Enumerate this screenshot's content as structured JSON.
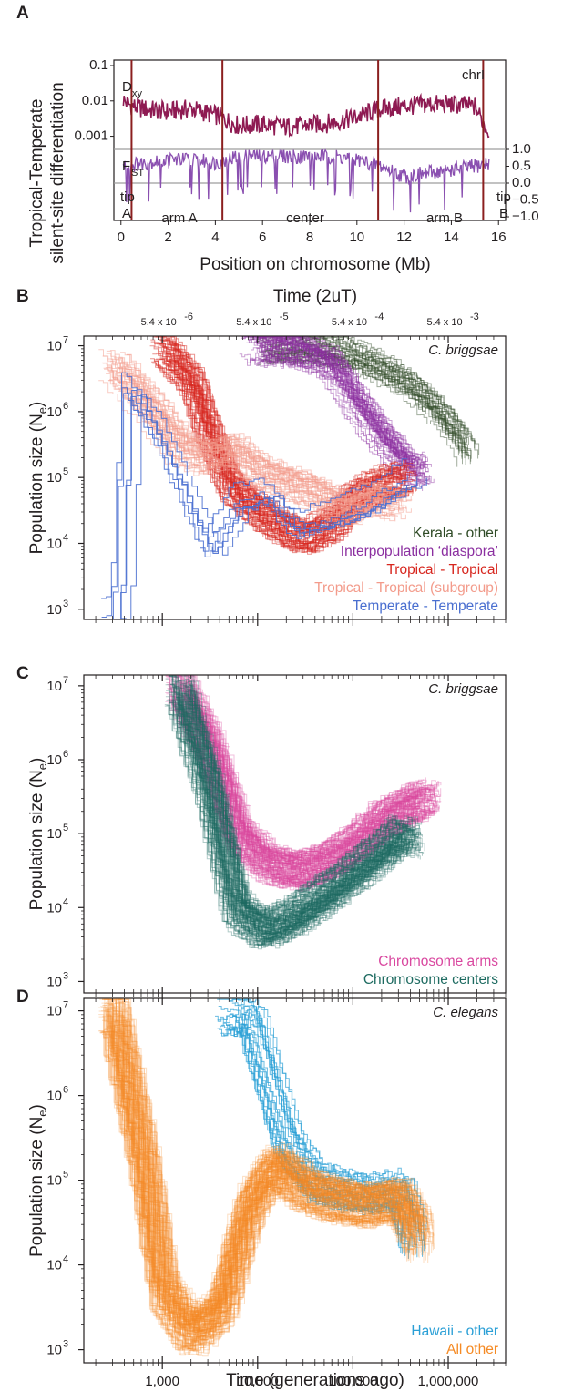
{
  "chart_data": [
    {
      "panel": "A",
      "type": "line",
      "ylabel": "Tropical-Temperate\nsilent-site differentiation",
      "xlabel": "Position on chromosome (Mb)",
      "xlim": [
        -0.3,
        16.3
      ],
      "x_ticks": [
        "0",
        "2",
        "4",
        "6",
        "8",
        "10",
        "12",
        "14",
        "16"
      ],
      "left_y_ticks": [
        "0.1",
        "0.01",
        "0.001"
      ],
      "right_y_ticks": [
        "1.0",
        "0.5",
        "0.0",
        "−0.5",
        "−1.0"
      ],
      "series": [
        {
          "name": "D",
          "subscript": "xy",
          "color": "#8e1a52",
          "scale": "log",
          "ylim": [
            0.0004,
            0.1
          ],
          "x": [
            0.1,
            1.0,
            2.0,
            3.0,
            4.0,
            5.0,
            6.0,
            7.0,
            8.0,
            9.0,
            10.0,
            11.0,
            12.0,
            13.0,
            14.0,
            15.0,
            15.6
          ],
          "values": [
            0.011,
            0.006,
            0.005,
            0.006,
            0.004,
            0.002,
            0.0022,
            0.0018,
            0.0021,
            0.0024,
            0.0035,
            0.006,
            0.007,
            0.008,
            0.008,
            0.007,
            0.0012
          ]
        },
        {
          "name": "F",
          "subscript": "ST",
          "color": "#8a4fb0",
          "scale": "linear",
          "ylim": [
            -1.2,
            1.2
          ],
          "x": [
            0.1,
            1.0,
            2.0,
            3.0,
            4.0,
            5.0,
            6.0,
            7.0,
            8.0,
            9.0,
            10.0,
            11.0,
            12.0,
            13.0,
            14.0,
            15.0,
            15.6
          ],
          "values": [
            0.5,
            0.6,
            0.7,
            0.7,
            0.6,
            0.8,
            0.8,
            0.8,
            0.8,
            0.8,
            0.7,
            0.5,
            0.2,
            0.3,
            0.4,
            0.5,
            0.6
          ]
        }
      ],
      "boundaries_mb": [
        0.45,
        4.3,
        10.9,
        15.35
      ],
      "boundary_color": "#8b1f1f",
      "gray_line_color": "#9d9d9d",
      "regions": [
        {
          "label": "tip",
          "label2": "A"
        },
        {
          "label": "arm A"
        },
        {
          "label": "center"
        },
        {
          "label": "arm B"
        },
        {
          "label": "tip",
          "label2": "B"
        }
      ],
      "chromosome_label": "chrI",
      "letter": "A"
    },
    {
      "panel": "B",
      "type": "line",
      "species": "C. briggsae",
      "ylabel": "Population size (N",
      "ylabel_sub": "e",
      "top_axis_label": "Time (2uT)",
      "top_ticks": [
        "5.4 x 10",
        "5.4 x 10",
        "5.4 x 10",
        "5.4 x 10"
      ],
      "top_tick_exp": [
        "-6",
        "-5",
        "-4",
        "-3"
      ],
      "xscale": "log",
      "yscale": "log",
      "xlim": [
        150,
        4000000
      ],
      "ylim": [
        700,
        14000000
      ],
      "y_ticks": [
        "10",
        "10",
        "10",
        "10",
        "10"
      ],
      "y_tick_exp": [
        "3",
        "4",
        "5",
        "6",
        "7"
      ],
      "series": [
        {
          "name": "Kerala - other",
          "color": "#2e4a25",
          "x": [
            12000,
            30000,
            60000,
            100000,
            200000,
            400000,
            800000,
            1300000,
            1500000
          ],
          "values": [
            9000000,
            9000000,
            8000000,
            7000000,
            4500000,
            2500000,
            1000000,
            400000,
            250000
          ]
        },
        {
          "name": "Interpopulation ‘diaspora’",
          "color": "#8b2fa0",
          "x": [
            9000,
            15000,
            30000,
            60000,
            100000,
            200000,
            350000,
            500000
          ],
          "values": [
            9000000,
            9000000,
            8000000,
            5000000,
            1500000,
            400000,
            150000,
            120000
          ]
        },
        {
          "name": "Tropical - Tropical",
          "color": "#d7261e",
          "x": [
            1000,
            2000,
            3000,
            5000,
            8000,
            15000,
            30000,
            60000,
            100000,
            200000,
            350000
          ],
          "values": [
            9000000,
            3000000,
            500000,
            80000,
            40000,
            20000,
            12000,
            20000,
            50000,
            80000,
            100000
          ]
        },
        {
          "name": "Tropical - Tropical (subgroup)",
          "color": "#f39b8b",
          "x": [
            300,
            800,
            1500,
            3000,
            5000,
            8000,
            15000,
            40000,
            80000,
            150000,
            300000
          ],
          "values": [
            5000000,
            1000000,
            300000,
            200000,
            300000,
            150000,
            100000,
            60000,
            30000,
            50000,
            40000
          ]
        },
        {
          "name": "Temperate - Temperate",
          "color": "#4a6fd0",
          "x": [
            260,
            320,
            420,
            700,
            1500,
            3000,
            6000,
            12000,
            25000,
            60000,
            150000,
            300000,
            420000
          ],
          "values": [
            1000,
            1000,
            3000000,
            1000000,
            100000,
            10000,
            50000,
            70000,
            20000,
            30000,
            50000,
            100000,
            130000
          ]
        }
      ],
      "letter": "B"
    },
    {
      "panel": "C",
      "type": "line",
      "species": "C. briggsae",
      "ylabel": "Population size (N",
      "ylabel_sub": "e",
      "xscale": "log",
      "yscale": "log",
      "xlim": [
        150,
        4000000
      ],
      "ylim": [
        700,
        14000000
      ],
      "y_ticks": [
        "10",
        "10",
        "10",
        "10",
        "10"
      ],
      "y_tick_exp": [
        "3",
        "4",
        "5",
        "6",
        "7"
      ],
      "series": [
        {
          "name": "Chromosome arms",
          "color": "#d9479f",
          "x": [
            1500,
            3000,
            6000,
            12000,
            25000,
            50000,
            100000,
            200000,
            400000,
            600000
          ],
          "values": [
            9000000,
            1500000,
            100000,
            40000,
            30000,
            40000,
            70000,
            150000,
            250000,
            300000
          ]
        },
        {
          "name": "Chromosome centers",
          "color": "#1e6b61",
          "x": [
            1500,
            3000,
            6000,
            12000,
            25000,
            50000,
            100000,
            200000,
            300000,
            400000
          ],
          "values": [
            9000000,
            500000,
            10000,
            5000,
            8000,
            15000,
            30000,
            60000,
            100000,
            80000
          ]
        }
      ],
      "letter": "C"
    },
    {
      "panel": "D",
      "type": "line",
      "species": "C. elegans",
      "ylabel": "Population size (N",
      "ylabel_sub": "e",
      "xlabel": "Time (generations ago)",
      "xscale": "log",
      "yscale": "log",
      "xlim": [
        150,
        4000000
      ],
      "ylim": [
        700,
        14000000
      ],
      "x_ticks": [
        "1,000",
        "10,000",
        "100,000",
        "1,000,000"
      ],
      "y_ticks": [
        "10",
        "10",
        "10",
        "10",
        "10"
      ],
      "y_tick_exp": [
        "3",
        "4",
        "5",
        "6",
        "7"
      ],
      "series": [
        {
          "name": "Hawaii - other",
          "color": "#2a9fd6",
          "x": [
            5000,
            8000,
            12000,
            20000,
            40000,
            80000,
            150000,
            300000,
            420000
          ],
          "values": [
            9000000,
            9000000,
            2000000,
            300000,
            100000,
            80000,
            70000,
            80000,
            20000
          ]
        },
        {
          "name": "All other",
          "color": "#f58a24",
          "x": [
            300,
            600,
            1000,
            2000,
            4000,
            8000,
            15000,
            30000,
            60000,
            150000,
            300000,
            500000
          ],
          "values": [
            9000000,
            200000,
            5000,
            1500,
            3000,
            50000,
            150000,
            80000,
            60000,
            50000,
            60000,
            20000
          ]
        }
      ],
      "letter": "D"
    }
  ]
}
